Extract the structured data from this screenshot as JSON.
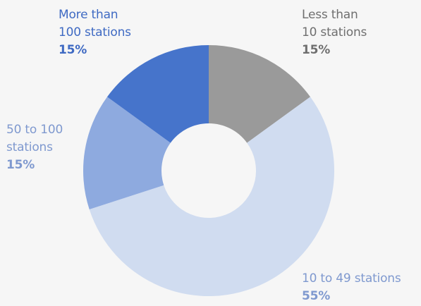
{
  "chart_data": {
    "type": "donut",
    "title": "",
    "slices": [
      {
        "label_lines": [
          "Less than",
          "10 stations"
        ],
        "value": 15,
        "value_label": "15%",
        "color": "#9a9a9a",
        "label_color": "#6f6f6f"
      },
      {
        "label_lines": [
          "10 to 49 stations"
        ],
        "value": 55,
        "value_label": "55%",
        "color": "#d0dcf0",
        "label_color": "#7f99cf"
      },
      {
        "label_lines": [
          "50 to 100",
          "stations"
        ],
        "value": 15,
        "value_label": "15%",
        "color": "#8eaadf",
        "label_color": "#7f99cf"
      },
      {
        "label_lines": [
          "More than",
          "100 stations"
        ],
        "value": 15,
        "value_label": "15%",
        "color": "#4674cb",
        "label_color": "#3f6ac3"
      }
    ],
    "start_angle_deg": 0,
    "direction": "clockwise",
    "background": "#f6f6f6"
  }
}
